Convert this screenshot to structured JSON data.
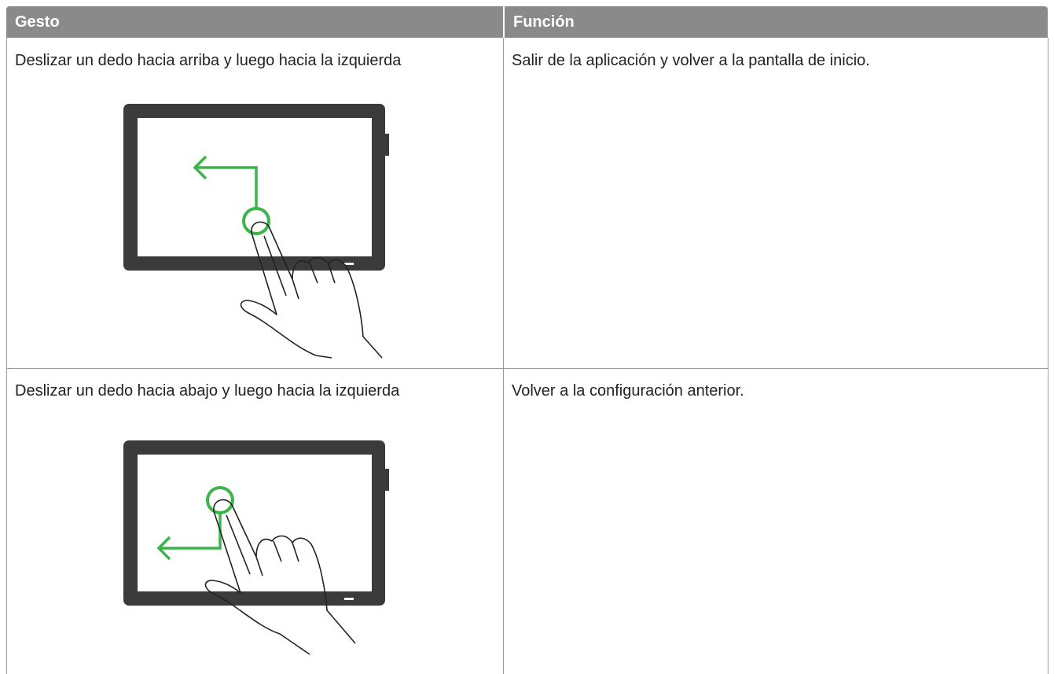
{
  "table": {
    "header": [
      "Gesto",
      "Función"
    ],
    "rows": [
      [
        "Deslizar un dedo hacia arriba y luego hacia la izquierda",
        "Salir de la aplicación y volver a la pantalla de inicio."
      ],
      [
        "Deslizar un dedo hacia abajo y luego hacia la izquierda",
        "Volver a la configuración anterior."
      ]
    ]
  }
}
